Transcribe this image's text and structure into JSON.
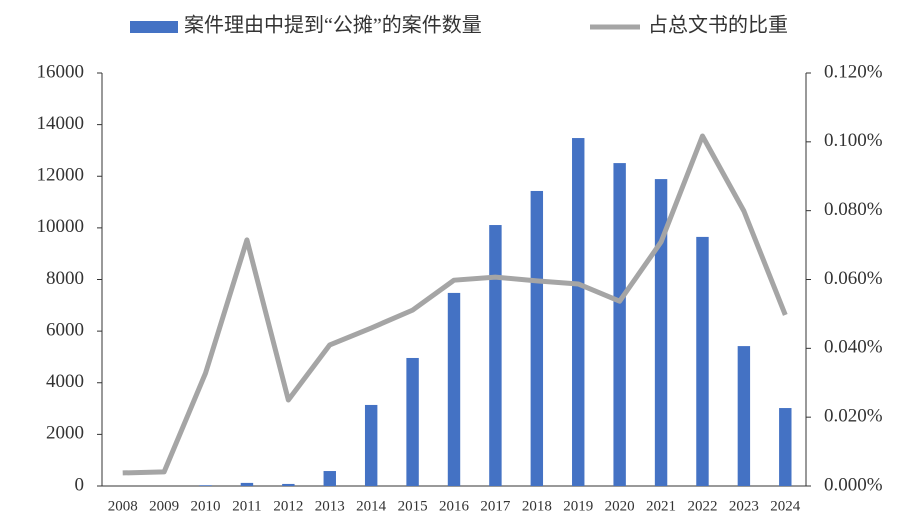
{
  "chart_data": {
    "type": "bar-line",
    "categories": [
      "2008",
      "2009",
      "2010",
      "2011",
      "2012",
      "2013",
      "2014",
      "2015",
      "2016",
      "2017",
      "2018",
      "2019",
      "2020",
      "2021",
      "2022",
      "2023",
      "2024"
    ],
    "series": [
      {
        "name": "案件理由中提到“公摊”的案件数量",
        "type": "bar",
        "color": "#4472c4",
        "axis": "y",
        "values": [
          0,
          0,
          30,
          120,
          80,
          580,
          3140,
          4960,
          7480,
          10110,
          11430,
          13480,
          12510,
          11890,
          9650,
          5420,
          3020
        ]
      },
      {
        "name": "占总文书的比重",
        "type": "line",
        "color": "#a5a5a5",
        "axis": "y2",
        "values": [
          0.0038,
          0.0041,
          0.0328,
          0.0715,
          0.025,
          0.041,
          0.0459,
          0.0511,
          0.0598,
          0.0607,
          0.0596,
          0.0587,
          0.0537,
          0.0709,
          0.1017,
          0.0799,
          0.0497
        ]
      }
    ],
    "ylim": [
      0,
      16000
    ],
    "yticks": [
      0,
      2000,
      4000,
      6000,
      8000,
      10000,
      12000,
      14000,
      16000
    ],
    "y2lim": [
      0,
      0.12
    ],
    "y2ticks": [
      {
        "value": 0,
        "label": "0.000%"
      },
      {
        "value": 0.02,
        "label": "0.020%"
      },
      {
        "value": 0.04,
        "label": "0.040%"
      },
      {
        "value": 0.06,
        "label": "0.060%"
      },
      {
        "value": 0.08,
        "label": "0.080%"
      },
      {
        "value": 0.1,
        "label": "0.100%"
      },
      {
        "value": 0.12,
        "label": "0.120%"
      }
    ],
    "grid": false,
    "legend": "top"
  }
}
